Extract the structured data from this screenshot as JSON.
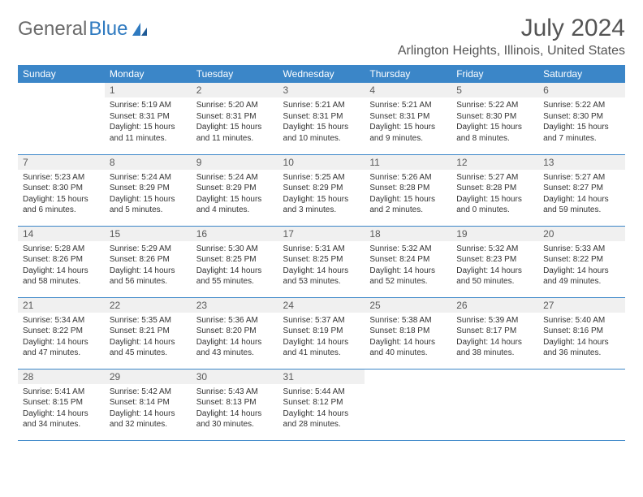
{
  "brand": {
    "part1": "General",
    "part2": "Blue"
  },
  "title": "July 2024",
  "location": "Arlington Heights, Illinois, United States",
  "colors": {
    "header_bg": "#3b86c8",
    "header_text": "#ffffff",
    "daynum_bg": "#f0f0f0",
    "cell_border": "#3b86c8",
    "body_text": "#333333",
    "title_text": "#555555",
    "logo_gray": "#6a6a6a",
    "logo_blue": "#2f7ac0"
  },
  "weekdays": [
    "Sunday",
    "Monday",
    "Tuesday",
    "Wednesday",
    "Thursday",
    "Friday",
    "Saturday"
  ],
  "weeks": [
    [
      {
        "day": "",
        "text": ""
      },
      {
        "day": "1",
        "text": "Sunrise: 5:19 AM\nSunset: 8:31 PM\nDaylight: 15 hours and 11 minutes."
      },
      {
        "day": "2",
        "text": "Sunrise: 5:20 AM\nSunset: 8:31 PM\nDaylight: 15 hours and 11 minutes."
      },
      {
        "day": "3",
        "text": "Sunrise: 5:21 AM\nSunset: 8:31 PM\nDaylight: 15 hours and 10 minutes."
      },
      {
        "day": "4",
        "text": "Sunrise: 5:21 AM\nSunset: 8:31 PM\nDaylight: 15 hours and 9 minutes."
      },
      {
        "day": "5",
        "text": "Sunrise: 5:22 AM\nSunset: 8:30 PM\nDaylight: 15 hours and 8 minutes."
      },
      {
        "day": "6",
        "text": "Sunrise: 5:22 AM\nSunset: 8:30 PM\nDaylight: 15 hours and 7 minutes."
      }
    ],
    [
      {
        "day": "7",
        "text": "Sunrise: 5:23 AM\nSunset: 8:30 PM\nDaylight: 15 hours and 6 minutes."
      },
      {
        "day": "8",
        "text": "Sunrise: 5:24 AM\nSunset: 8:29 PM\nDaylight: 15 hours and 5 minutes."
      },
      {
        "day": "9",
        "text": "Sunrise: 5:24 AM\nSunset: 8:29 PM\nDaylight: 15 hours and 4 minutes."
      },
      {
        "day": "10",
        "text": "Sunrise: 5:25 AM\nSunset: 8:29 PM\nDaylight: 15 hours and 3 minutes."
      },
      {
        "day": "11",
        "text": "Sunrise: 5:26 AM\nSunset: 8:28 PM\nDaylight: 15 hours and 2 minutes."
      },
      {
        "day": "12",
        "text": "Sunrise: 5:27 AM\nSunset: 8:28 PM\nDaylight: 15 hours and 0 minutes."
      },
      {
        "day": "13",
        "text": "Sunrise: 5:27 AM\nSunset: 8:27 PM\nDaylight: 14 hours and 59 minutes."
      }
    ],
    [
      {
        "day": "14",
        "text": "Sunrise: 5:28 AM\nSunset: 8:26 PM\nDaylight: 14 hours and 58 minutes."
      },
      {
        "day": "15",
        "text": "Sunrise: 5:29 AM\nSunset: 8:26 PM\nDaylight: 14 hours and 56 minutes."
      },
      {
        "day": "16",
        "text": "Sunrise: 5:30 AM\nSunset: 8:25 PM\nDaylight: 14 hours and 55 minutes."
      },
      {
        "day": "17",
        "text": "Sunrise: 5:31 AM\nSunset: 8:25 PM\nDaylight: 14 hours and 53 minutes."
      },
      {
        "day": "18",
        "text": "Sunrise: 5:32 AM\nSunset: 8:24 PM\nDaylight: 14 hours and 52 minutes."
      },
      {
        "day": "19",
        "text": "Sunrise: 5:32 AM\nSunset: 8:23 PM\nDaylight: 14 hours and 50 minutes."
      },
      {
        "day": "20",
        "text": "Sunrise: 5:33 AM\nSunset: 8:22 PM\nDaylight: 14 hours and 49 minutes."
      }
    ],
    [
      {
        "day": "21",
        "text": "Sunrise: 5:34 AM\nSunset: 8:22 PM\nDaylight: 14 hours and 47 minutes."
      },
      {
        "day": "22",
        "text": "Sunrise: 5:35 AM\nSunset: 8:21 PM\nDaylight: 14 hours and 45 minutes."
      },
      {
        "day": "23",
        "text": "Sunrise: 5:36 AM\nSunset: 8:20 PM\nDaylight: 14 hours and 43 minutes."
      },
      {
        "day": "24",
        "text": "Sunrise: 5:37 AM\nSunset: 8:19 PM\nDaylight: 14 hours and 41 minutes."
      },
      {
        "day": "25",
        "text": "Sunrise: 5:38 AM\nSunset: 8:18 PM\nDaylight: 14 hours and 40 minutes."
      },
      {
        "day": "26",
        "text": "Sunrise: 5:39 AM\nSunset: 8:17 PM\nDaylight: 14 hours and 38 minutes."
      },
      {
        "day": "27",
        "text": "Sunrise: 5:40 AM\nSunset: 8:16 PM\nDaylight: 14 hours and 36 minutes."
      }
    ],
    [
      {
        "day": "28",
        "text": "Sunrise: 5:41 AM\nSunset: 8:15 PM\nDaylight: 14 hours and 34 minutes."
      },
      {
        "day": "29",
        "text": "Sunrise: 5:42 AM\nSunset: 8:14 PM\nDaylight: 14 hours and 32 minutes."
      },
      {
        "day": "30",
        "text": "Sunrise: 5:43 AM\nSunset: 8:13 PM\nDaylight: 14 hours and 30 minutes."
      },
      {
        "day": "31",
        "text": "Sunrise: 5:44 AM\nSunset: 8:12 PM\nDaylight: 14 hours and 28 minutes."
      },
      {
        "day": "",
        "text": ""
      },
      {
        "day": "",
        "text": ""
      },
      {
        "day": "",
        "text": ""
      }
    ]
  ]
}
